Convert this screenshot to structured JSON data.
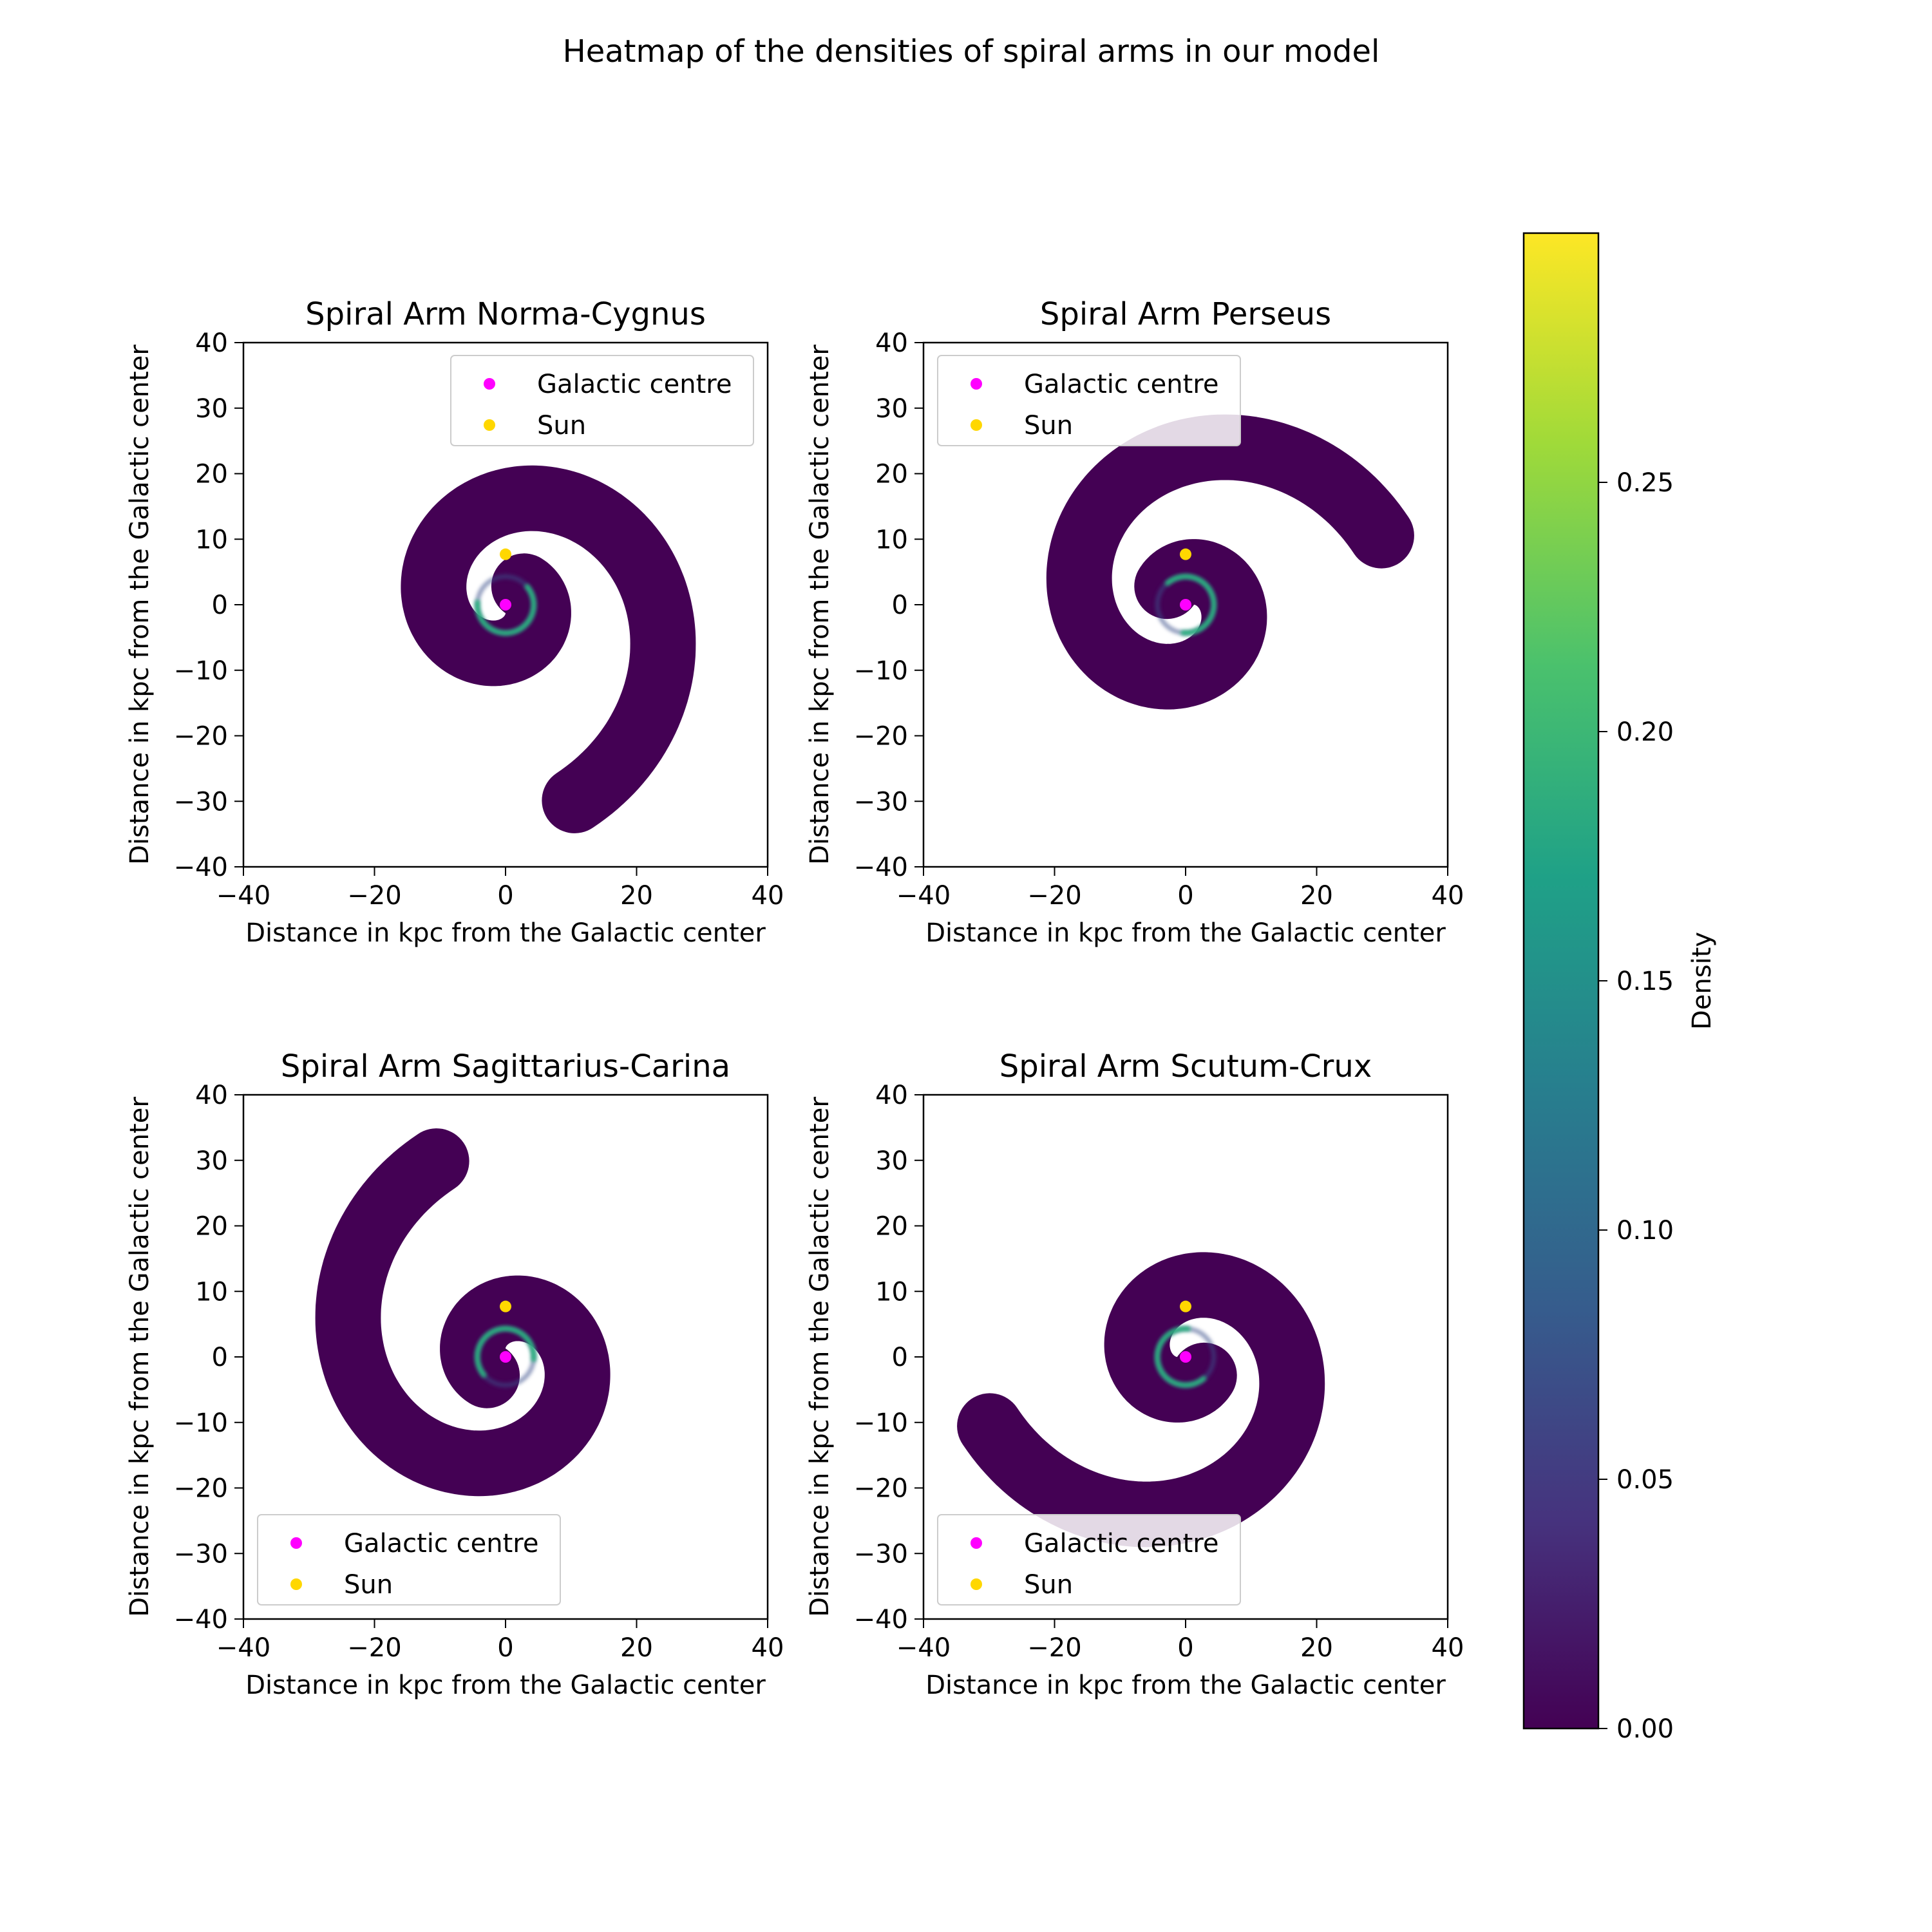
{
  "figure_title": "Heatmap of the densities of spiral arms in our model",
  "colors": {
    "arm_fill": "#440154",
    "galactic_centre": "#ff00ff",
    "sun": "#ffd700",
    "colormap": [
      "#440154",
      "#46337e",
      "#365c8d",
      "#277f8e",
      "#1fa187",
      "#4ac16d",
      "#a0da39",
      "#fde725"
    ]
  },
  "chart_data": [
    {
      "type": "heatmap",
      "title": "Spiral Arm Norma-Cygnus",
      "xlabel": "Distance in kpc from the Galactic center",
      "ylabel": "Distance in kpc from the Galactic center",
      "xlim": [
        -40,
        40
      ],
      "ylim": [
        -40,
        40
      ],
      "xticks": [
        "−40",
        "−20",
        "0",
        "20",
        "40"
      ],
      "yticks": [
        "40",
        "30",
        "20",
        "10",
        "0",
        "−10",
        "−20",
        "−30",
        "−40"
      ],
      "legend_location": "upper right",
      "legend": [
        {
          "label": "Galactic centre",
          "color": "#ff00ff"
        },
        {
          "label": "Sun",
          "color": "#ffd700"
        }
      ],
      "points": {
        "galactic_centre": [
          0,
          0
        ],
        "sun": [
          0,
          7.7
        ]
      },
      "spiral": {
        "start_angle_deg": 45,
        "pitch_deg": 14,
        "r_start_kpc": 4.0,
        "length_rad": 8.3,
        "half_width_kpc": 5.0
      },
      "bright_arc": {
        "r_kpc": 4.3,
        "from_deg": -185,
        "to_deg": 40
      }
    },
    {
      "type": "heatmap",
      "title": "Spiral Arm Perseus",
      "xlabel": "Distance in kpc from the Galactic center",
      "ylabel": "Distance in kpc from the Galactic center",
      "xlim": [
        -40,
        40
      ],
      "ylim": [
        -40,
        40
      ],
      "xticks": [
        "−40",
        "−20",
        "0",
        "20",
        "40"
      ],
      "yticks": [
        "40",
        "30",
        "20",
        "10",
        "0",
        "−10",
        "−20",
        "−30",
        "−40"
      ],
      "legend_location": "upper left",
      "legend": [
        {
          "label": "Galactic centre",
          "color": "#ff00ff"
        },
        {
          "label": "Sun",
          "color": "#ffd700"
        }
      ],
      "points": {
        "galactic_centre": [
          0,
          0
        ],
        "sun": [
          0,
          7.7
        ]
      },
      "spiral": {
        "start_angle_deg": 135,
        "pitch_deg": 14,
        "r_start_kpc": 4.0,
        "length_rad": 8.3,
        "half_width_kpc": 5.0
      },
      "bright_arc": {
        "r_kpc": 4.3,
        "from_deg": -95,
        "to_deg": 130
      }
    },
    {
      "type": "heatmap",
      "title": "Spiral Arm Sagittarius-Carina",
      "xlabel": "Distance in kpc from the Galactic center",
      "ylabel": "Distance in kpc from the Galactic center",
      "xlim": [
        -40,
        40
      ],
      "ylim": [
        -40,
        40
      ],
      "xticks": [
        "−40",
        "−20",
        "0",
        "20",
        "40"
      ],
      "yticks": [
        "40",
        "30",
        "20",
        "10",
        "0",
        "−10",
        "−20",
        "−30",
        "−40"
      ],
      "legend_location": "lower left",
      "legend": [
        {
          "label": "Galactic centre",
          "color": "#ff00ff"
        },
        {
          "label": "Sun",
          "color": "#ffd700"
        }
      ],
      "points": {
        "galactic_centre": [
          0,
          0
        ],
        "sun": [
          0,
          7.7
        ]
      },
      "spiral": {
        "start_angle_deg": 225,
        "pitch_deg": 14,
        "r_start_kpc": 4.0,
        "length_rad": 8.3,
        "half_width_kpc": 5.0
      },
      "bright_arc": {
        "r_kpc": 4.3,
        "from_deg": -5,
        "to_deg": 220
      }
    },
    {
      "type": "heatmap",
      "title": "Spiral Arm Scutum-Crux",
      "xlabel": "Distance in kpc from the Galactic center",
      "ylabel": "Distance in kpc from the Galactic center",
      "xlim": [
        -40,
        40
      ],
      "ylim": [
        -40,
        40
      ],
      "xticks": [
        "−40",
        "−20",
        "0",
        "20",
        "40"
      ],
      "yticks": [
        "40",
        "30",
        "20",
        "10",
        "0",
        "−10",
        "−20",
        "−30",
        "−40"
      ],
      "legend_location": "lower left",
      "legend": [
        {
          "label": "Galactic centre",
          "color": "#ff00ff"
        },
        {
          "label": "Sun",
          "color": "#ffd700"
        }
      ],
      "points": {
        "galactic_centre": [
          0,
          0
        ],
        "sun": [
          0,
          7.7
        ]
      },
      "spiral": {
        "start_angle_deg": 315,
        "pitch_deg": 14,
        "r_start_kpc": 4.0,
        "length_rad": 8.3,
        "half_width_kpc": 5.0
      },
      "bright_arc": {
        "r_kpc": 4.3,
        "from_deg": 85,
        "to_deg": 310
      }
    }
  ],
  "colorbar": {
    "label": "Density",
    "range": [
      0,
      0.3
    ],
    "ticks": [
      "0.00",
      "0.05",
      "0.10",
      "0.15",
      "0.20",
      "0.25"
    ],
    "tick_values": [
      0,
      0.05,
      0.1,
      0.15,
      0.2,
      0.25
    ]
  }
}
